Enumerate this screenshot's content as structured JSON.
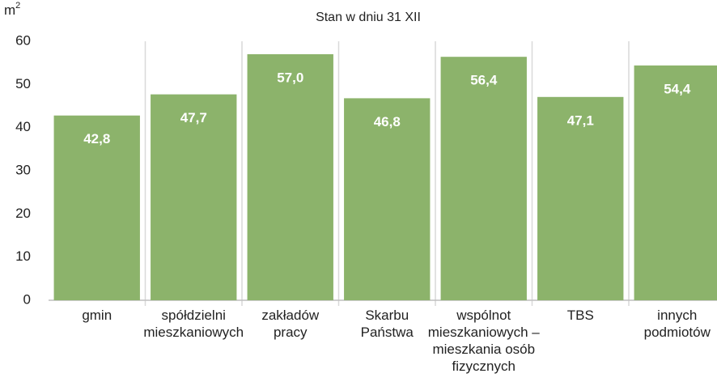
{
  "chart_data": {
    "type": "bar",
    "subtitle": "Stan w dniu 31 XII",
    "y_label": "m",
    "y_label_sup": "2",
    "categories": [
      [
        "gmin"
      ],
      [
        "spółdzielni",
        "mieszkaniowych"
      ],
      [
        "zakładów",
        "pracy"
      ],
      [
        "Skarbu",
        "Państwa"
      ],
      [
        "wspólnot",
        "mieszkaniowych –",
        "mieszkania osób",
        "fizycznych"
      ],
      [
        "TBS"
      ],
      [
        "innych",
        "podmiotów"
      ]
    ],
    "values": [
      42.8,
      47.7,
      57.0,
      46.8,
      56.4,
      47.1,
      54.4
    ],
    "value_labels": [
      "42,8",
      "47,7",
      "57,0",
      "46,8",
      "56,4",
      "47,1",
      "54,4"
    ],
    "color": "#8cb36b",
    "ylim": [
      0,
      60
    ],
    "yticks": [
      0,
      10,
      20,
      30,
      40,
      50,
      60
    ],
    "grid": true
  }
}
